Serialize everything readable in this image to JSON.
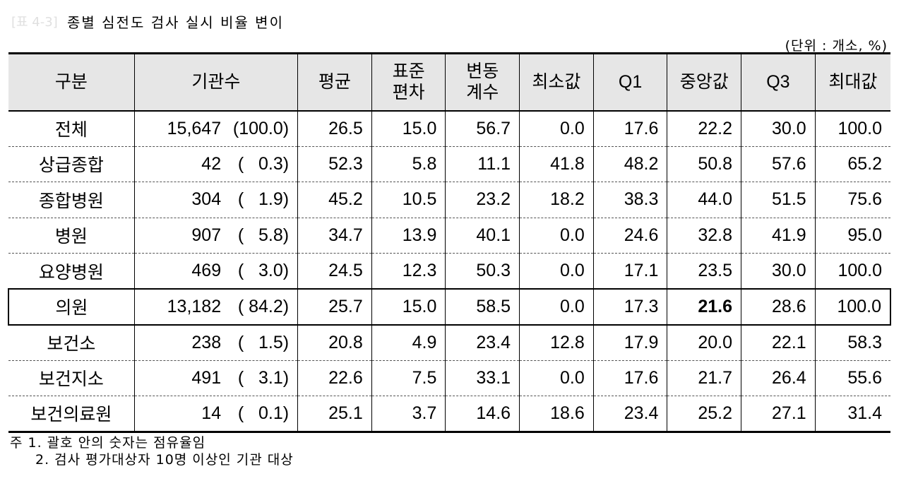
{
  "title": {
    "tag": "[표 4-3]",
    "text": "종별 심전도 검사 실시 비율 변이"
  },
  "unit": "(단위 : 개소, %)",
  "columns": [
    "구분",
    "기관수",
    "평균",
    "표준\n편차",
    "변동\n계수",
    "최소값",
    "Q1",
    "중앙값",
    "Q3",
    "최대값"
  ],
  "rows": [
    {
      "label": "전체",
      "count": "15,647",
      "pct": "(100.0)",
      "mean": "26.5",
      "sd": "15.0",
      "cv": "56.7",
      "min": "0.0",
      "q1": "17.6",
      "median": "22.2",
      "q3": "30.0",
      "max": "100.0"
    },
    {
      "label": "상급종합",
      "count": "42",
      "pct": "(   0.3)",
      "mean": "52.3",
      "sd": "5.8",
      "cv": "11.1",
      "min": "41.8",
      "q1": "48.2",
      "median": "50.8",
      "q3": "57.6",
      "max": "65.2"
    },
    {
      "label": "종합병원",
      "count": "304",
      "pct": "(   1.9)",
      "mean": "45.2",
      "sd": "10.5",
      "cv": "23.2",
      "min": "18.2",
      "q1": "38.3",
      "median": "44.0",
      "q3": "51.5",
      "max": "75.6"
    },
    {
      "label": "병원",
      "count": "907",
      "pct": "(   5.8)",
      "mean": "34.7",
      "sd": "13.9",
      "cv": "40.1",
      "min": "0.0",
      "q1": "24.6",
      "median": "32.8",
      "q3": "41.9",
      "max": "95.0"
    },
    {
      "label": "요양병원",
      "count": "469",
      "pct": "(   3.0)",
      "mean": "24.5",
      "sd": "12.3",
      "cv": "50.3",
      "min": "0.0",
      "q1": "17.1",
      "median": "23.5",
      "q3": "30.0",
      "max": "100.0"
    },
    {
      "label": "의원",
      "count": "13,182",
      "pct": "( 84.2)",
      "mean": "25.7",
      "sd": "15.0",
      "cv": "58.5",
      "min": "0.0",
      "q1": "17.3",
      "median": "21.6",
      "q3": "28.6",
      "max": "100.0",
      "highlight": true
    },
    {
      "label": "보건소",
      "count": "238",
      "pct": "(   1.5)",
      "mean": "20.8",
      "sd": "4.9",
      "cv": "23.4",
      "min": "12.8",
      "q1": "17.9",
      "median": "20.0",
      "q3": "22.1",
      "max": "58.3"
    },
    {
      "label": "보건지소",
      "count": "491",
      "pct": "(   3.1)",
      "mean": "22.6",
      "sd": "7.5",
      "cv": "33.1",
      "min": "0.0",
      "q1": "17.6",
      "median": "21.7",
      "q3": "26.4",
      "max": "55.6"
    },
    {
      "label": "보건의료원",
      "count": "14",
      "pct": "(   0.1)",
      "mean": "25.1",
      "sd": "3.7",
      "cv": "14.6",
      "min": "18.6",
      "q1": "23.4",
      "median": "25.2",
      "q3": "27.1",
      "max": "31.4"
    }
  ],
  "footnotes": [
    "주 1. 괄호 안의 숫자는 점유율임",
    "2. 검사 평가대상자 10명 이상인 기관 대상"
  ]
}
